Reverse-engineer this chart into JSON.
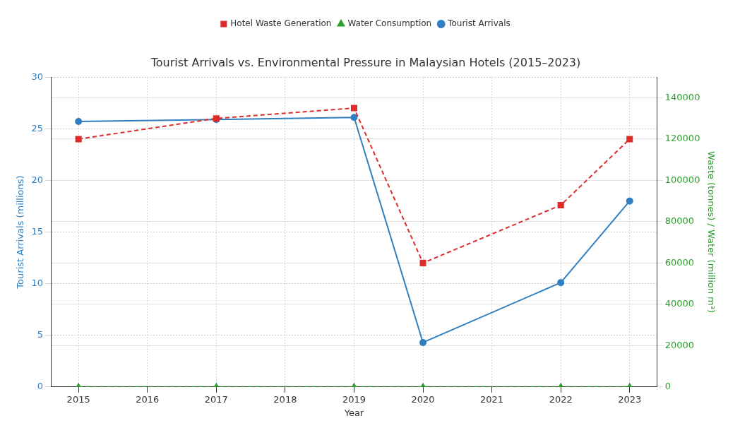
{
  "chart_data": {
    "type": "line",
    "title": "Tourist Arrivals vs. Environmental Pressure in Malaysian Hotels (2015–2023)",
    "xlabel": "Year",
    "ylabel": "Tourist Arrivals (millions)",
    "y2label": "Waste (tonnes) / Water (million m³)",
    "x": [
      2015,
      2017,
      2019,
      2020,
      2022,
      2023
    ],
    "series": [
      {
        "name": "Tourist Arrivals",
        "color": "#2f7fc1",
        "values": [
          25.7,
          25.9,
          26.1,
          4.3,
          10.1,
          18.0
        ],
        "marker": "circle",
        "line_style": "solid"
      },
      {
        "name": "Hotel Waste Generation",
        "color": "#e02b2b",
        "values": [
          120000,
          130000,
          135000,
          60000,
          88000,
          120000
        ],
        "axis": "y2",
        "marker": "square",
        "line_style": "dashed"
      },
      {
        "name": "Water Consumption",
        "color": "#2ca02c",
        "values": [
          0,
          0,
          0,
          0,
          0,
          0
        ],
        "axis": "y2",
        "marker": "triangle",
        "line_style": "dashed"
      }
    ],
    "xlim": [
      2014.6,
      2023.4
    ],
    "xticks": [
      2015,
      2016,
      2017,
      2018,
      2019,
      2020,
      2021,
      2022,
      2023
    ],
    "ylim": [
      0,
      30
    ],
    "yticks": [
      0,
      5,
      10,
      15,
      20,
      25,
      30
    ],
    "y2lim": [
      0,
      150000
    ],
    "y2ticks": [
      0,
      20000,
      40000,
      60000,
      80000,
      100000,
      120000,
      140000
    ],
    "grid": true,
    "legend": "top"
  }
}
